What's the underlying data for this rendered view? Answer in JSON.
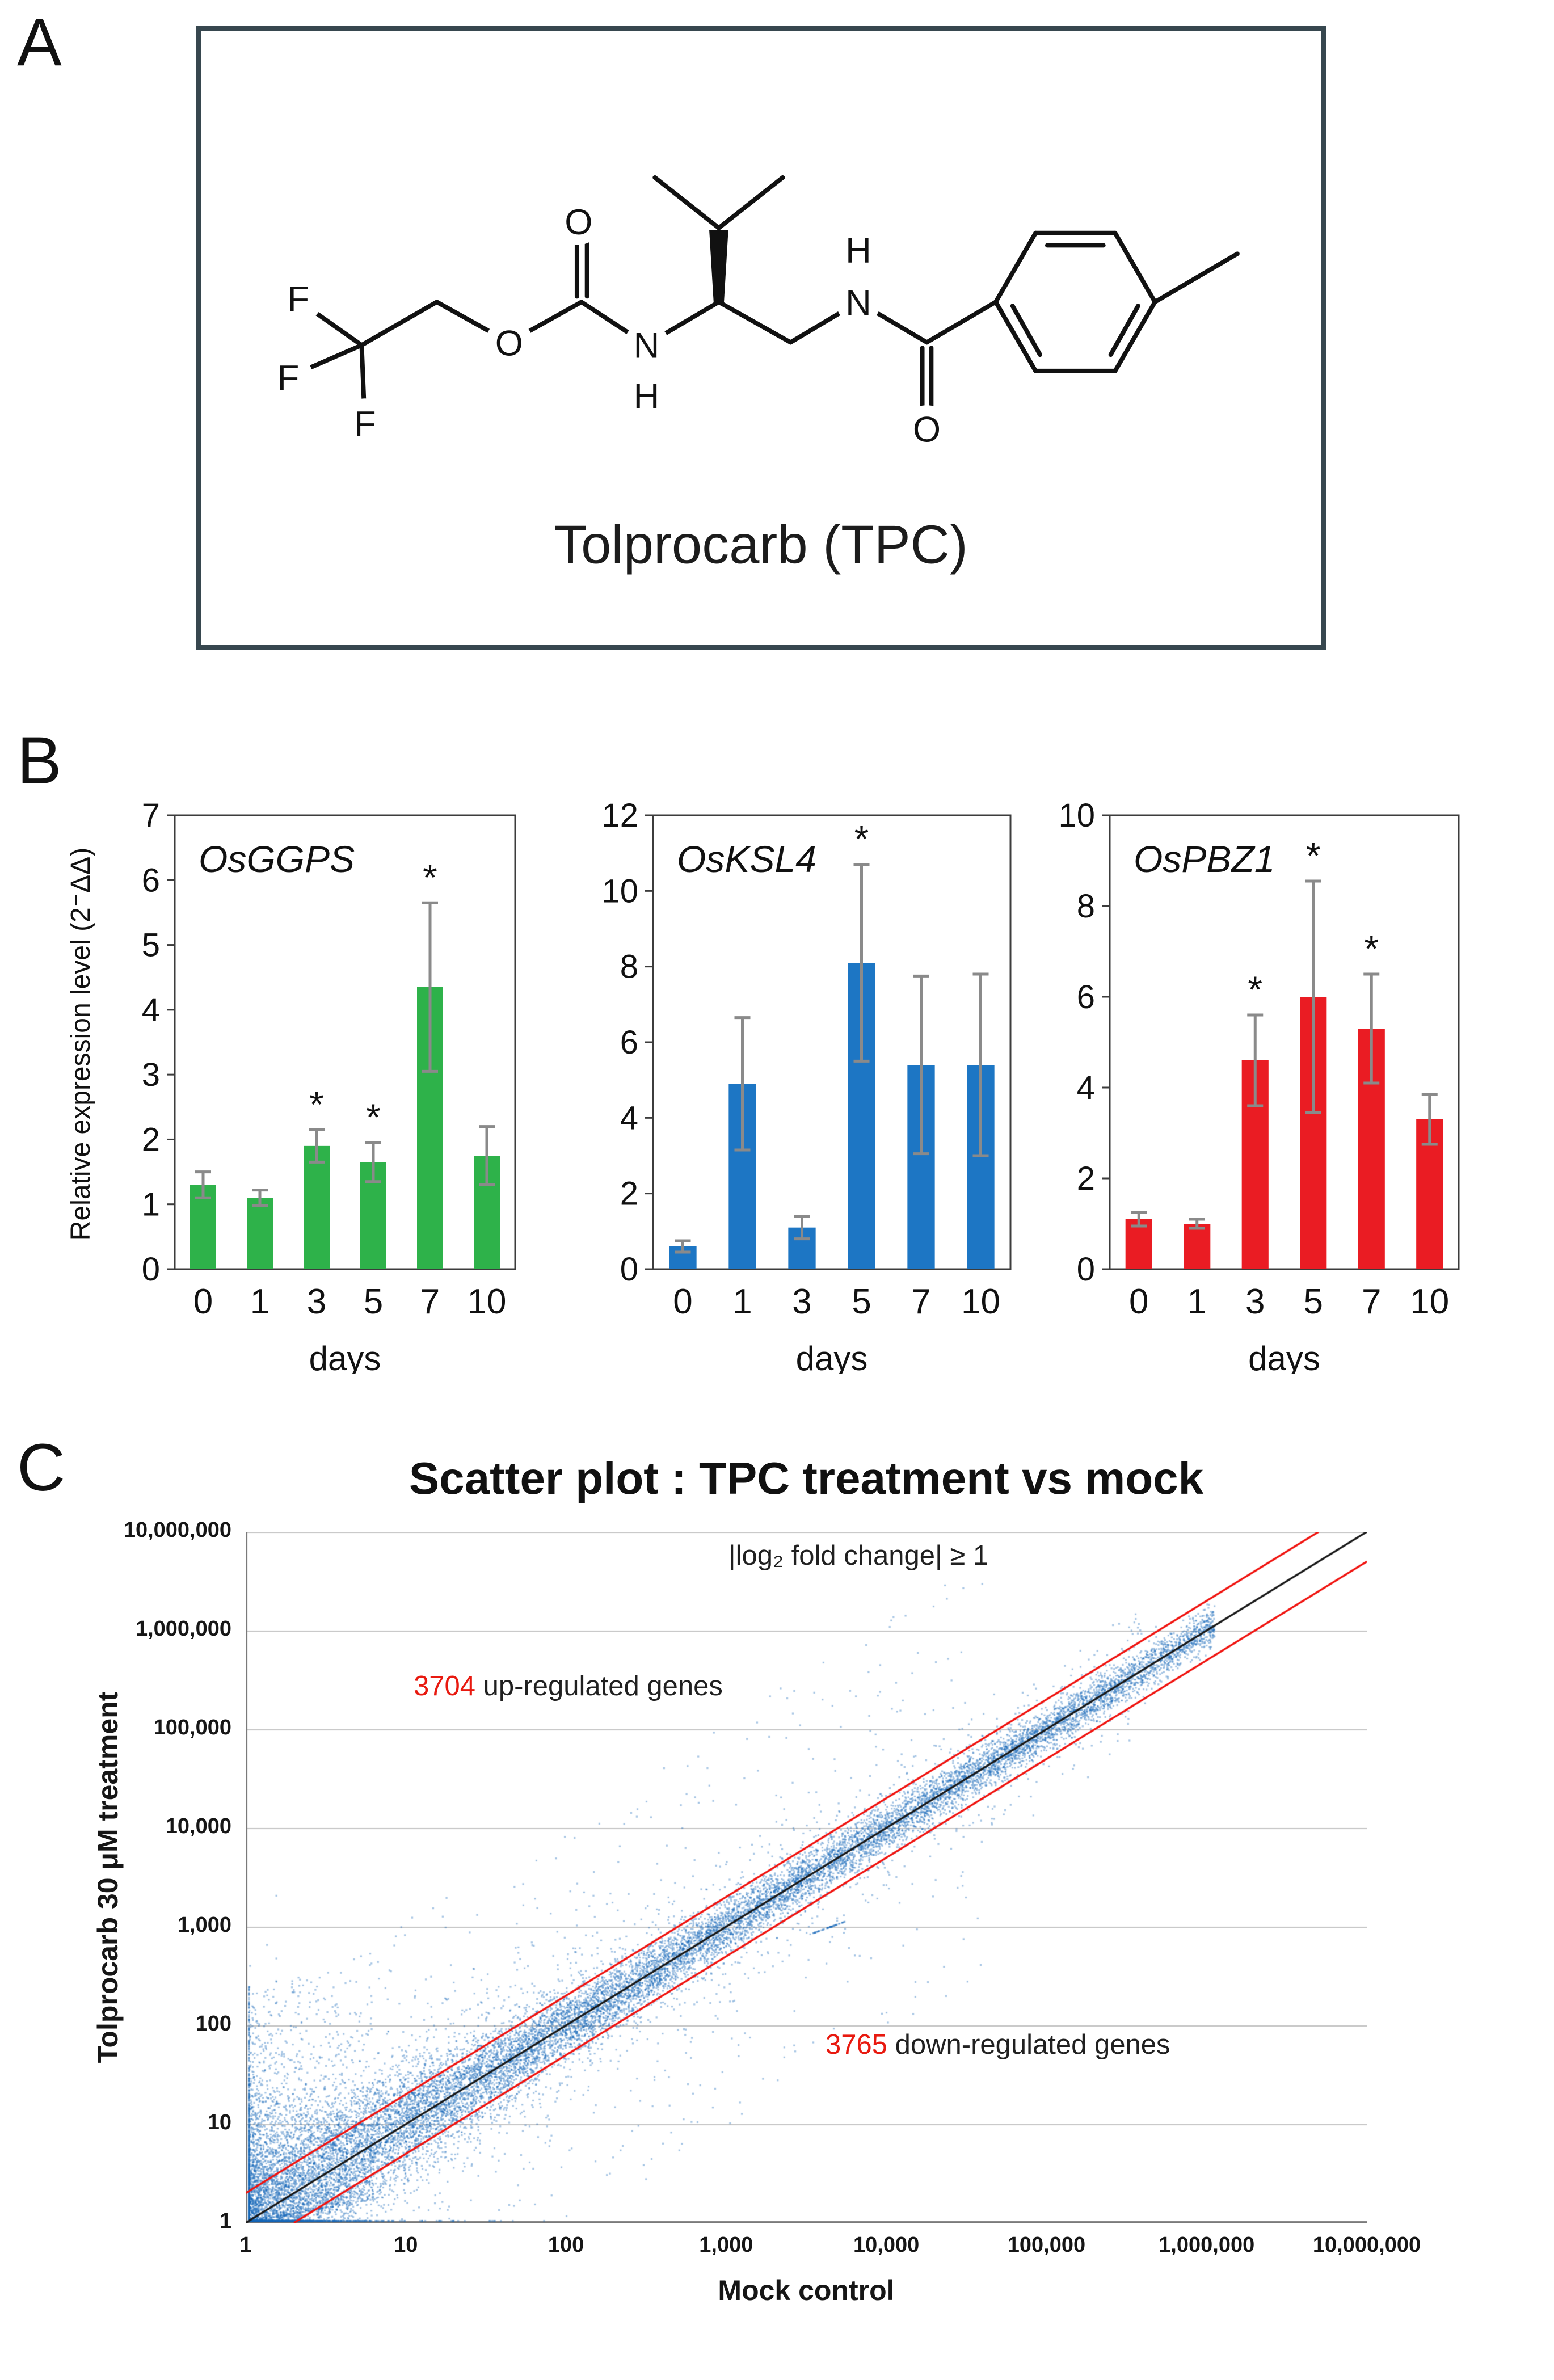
{
  "panel_labels": {
    "a": "A",
    "b": "B",
    "c": "C"
  },
  "panels": {
    "a": {
      "compound_name": "Tolprocarb (TPC)",
      "atom_labels": {
        "F": "F",
        "O": "O",
        "N": "N",
        "H": "H"
      }
    },
    "b": {
      "y_axis_label": "Relative expression level (2⁻ΔΔ)",
      "x_axis_label": "days"
    }
  },
  "chart_data": [
    {
      "type": "bar",
      "gene": "OsGGPS",
      "categories": [
        "0",
        "1",
        "3",
        "5",
        "7",
        "10"
      ],
      "values": [
        1.3,
        1.1,
        1.9,
        1.65,
        4.35,
        1.75
      ],
      "errors": [
        0.2,
        0.12,
        0.25,
        0.3,
        1.3,
        0.45
      ],
      "significant": [
        "",
        "",
        "*",
        "*",
        "*",
        ""
      ],
      "xlabel": "days",
      "ylabel": "Relative expression level (2⁻ΔΔ)",
      "ylim": [
        0,
        7
      ],
      "ytick_step": 1,
      "bar_color": "#2eb24a",
      "error_color": "#8a8a8a"
    },
    {
      "type": "bar",
      "gene": "OsKSL4",
      "categories": [
        "0",
        "1",
        "3",
        "5",
        "7",
        "10"
      ],
      "values": [
        0.6,
        4.9,
        1.1,
        8.1,
        5.4,
        5.4
      ],
      "errors": [
        0.15,
        1.75,
        0.3,
        2.6,
        2.35,
        2.4
      ],
      "significant": [
        "",
        "",
        "",
        "*",
        "",
        ""
      ],
      "xlabel": "days",
      "ylim": [
        0,
        12
      ],
      "ytick_step": 2,
      "bar_color": "#1d76c4",
      "error_color": "#8a8a8a"
    },
    {
      "type": "bar",
      "gene": "OsPBZ1",
      "categories": [
        "0",
        "1",
        "3",
        "5",
        "7",
        "10"
      ],
      "values": [
        1.1,
        1.0,
        4.6,
        6.0,
        5.3,
        3.3
      ],
      "errors": [
        0.15,
        0.1,
        1.0,
        2.55,
        1.2,
        0.55
      ],
      "significant": [
        "",
        "",
        "*",
        "*",
        "*",
        ""
      ],
      "xlabel": "days",
      "ylim": [
        0,
        10
      ],
      "ytick_step": 2,
      "bar_color": "#ea1c23",
      "error_color": "#8a8a8a"
    },
    {
      "type": "scatter",
      "title": "Scatter plot : TPC treatment vs mock",
      "xlabel": "Mock control",
      "ylabel": "Tolprocarb 30 μM treatment",
      "xlim_log": [
        1,
        10000000
      ],
      "ylim_log": [
        1,
        10000000
      ],
      "tick_labels": [
        "1",
        "10",
        "100",
        "1,000",
        "10,000",
        "100,000",
        "1,000,000",
        "10,000,000"
      ],
      "annotation": "|log₂ fold change| ≥ 1",
      "up_regulated": {
        "count": "3704",
        "label": " up-regulated genes"
      },
      "down_regulated": {
        "count": "3765",
        "label": " down-regulated genes"
      },
      "point_color": "#1666b8",
      "identity_line_color": "#1a1a1a",
      "threshold_line_color": "#f01410",
      "grid": "horizontal decade gridlines",
      "legend_position": "none"
    }
  ]
}
